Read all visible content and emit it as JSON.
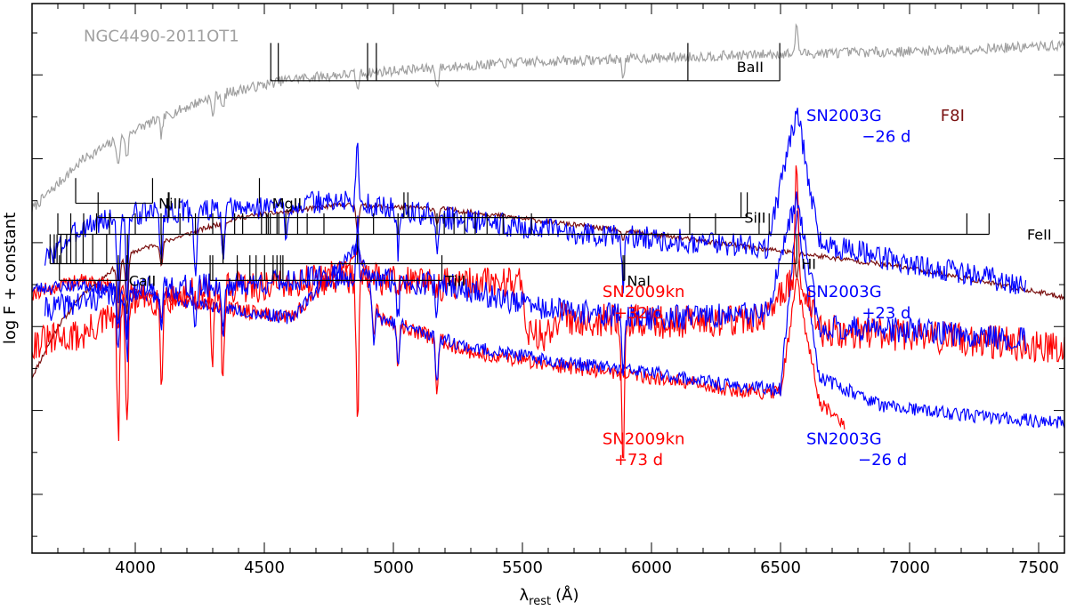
{
  "chart_data": {
    "type": "line",
    "xlabel_main": "λ",
    "xlabel_sub": "rest",
    "xlabel_unit": "(Å)",
    "ylabel": "log F + constant",
    "xlim": [
      3600,
      7600
    ],
    "x_ticks": [
      4000,
      4500,
      5000,
      5500,
      6000,
      6500,
      7000,
      7500
    ],
    "x_tick_labels": [
      "4000",
      "4500",
      "5000",
      "5500",
      "6000",
      "6500",
      "7000",
      "7500"
    ],
    "colors": {
      "blue": "#0000ff",
      "red": "#ff0000",
      "gray": "#a0a0a0",
      "maroon": "#7a1010"
    },
    "series": [
      {
        "id": "ngc4490",
        "name": "NGC4490-2011OT1",
        "color": "#a0a0a0",
        "base": [
          [
            3600,
            1.4
          ],
          [
            3700,
            1.7
          ],
          [
            3800,
            2.0
          ],
          [
            4000,
            2.35
          ],
          [
            4300,
            2.75
          ],
          [
            4600,
            2.95
          ],
          [
            5000,
            3.05
          ],
          [
            5500,
            3.15
          ],
          [
            6000,
            3.2
          ],
          [
            6500,
            3.25
          ],
          [
            7000,
            3.28
          ],
          [
            7600,
            3.35
          ]
        ],
        "lines": [
          [
            3934,
            0.35
          ],
          [
            3968,
            0.3
          ],
          [
            4101,
            0.2
          ],
          [
            4300,
            0.25
          ],
          [
            4340,
            0.2
          ],
          [
            4861,
            0.2
          ],
          [
            5170,
            0.25
          ],
          [
            5890,
            0.2
          ],
          [
            6563,
            -0.35
          ]
        ],
        "noise": 0.06,
        "seed": 7
      },
      {
        "id": "f8i",
        "name": "F8I",
        "color": "#7a1010",
        "base": [
          [
            3600,
            -0.6
          ],
          [
            3700,
            0.0
          ],
          [
            3800,
            0.4
          ],
          [
            4000,
            0.9
          ],
          [
            4400,
            1.3
          ],
          [
            4800,
            1.45
          ],
          [
            5200,
            1.4
          ],
          [
            5600,
            1.25
          ],
          [
            6000,
            1.1
          ],
          [
            6500,
            0.9
          ],
          [
            7000,
            0.7
          ],
          [
            7600,
            0.35
          ]
        ],
        "lines": [
          [
            3934,
            0.7
          ],
          [
            3968,
            0.65
          ],
          [
            4101,
            0.3
          ],
          [
            4340,
            0.35
          ],
          [
            4861,
            0.3
          ],
          [
            5170,
            0.2
          ],
          [
            5890,
            0.15
          ],
          [
            6563,
            0.3
          ]
        ],
        "noise": 0.03,
        "seed": 11
      },
      {
        "id": "sn2003g_m26_top",
        "name": "SN2003G −26 d",
        "color": "#0000ff",
        "base": [
          [
            3650,
            0.8
          ],
          [
            3800,
            1.2
          ],
          [
            4000,
            1.35
          ],
          [
            4400,
            1.4
          ],
          [
            4800,
            1.5
          ],
          [
            5200,
            1.3
          ],
          [
            5600,
            1.15
          ],
          [
            6000,
            1.05
          ],
          [
            6450,
            0.95
          ],
          [
            6563,
            2.6
          ],
          [
            6650,
            1.0
          ],
          [
            7000,
            0.75
          ],
          [
            7450,
            0.5
          ]
        ],
        "lines": [
          [
            3934,
            1.0
          ],
          [
            3968,
            1.0
          ],
          [
            4101,
            0.6
          ],
          [
            4233,
            0.8
          ],
          [
            4340,
            0.7
          ],
          [
            4584,
            0.5
          ],
          [
            4861,
            -0.7
          ],
          [
            5018,
            0.5
          ],
          [
            5169,
            0.5
          ],
          [
            5890,
            0.6
          ]
        ],
        "noise": 0.14,
        "seed": 3
      },
      {
        "id": "sn2009kn_32",
        "name": "SN2009kn +32 d",
        "color": "#ff0000",
        "base": [
          [
            3600,
            0.4
          ],
          [
            3800,
            0.55
          ],
          [
            4200,
            0.3
          ],
          [
            4600,
            0.1
          ],
          [
            4861,
            0.9
          ],
          [
            4950,
            0.1
          ],
          [
            5300,
            -0.3
          ],
          [
            5600,
            -0.45
          ],
          [
            6000,
            -0.6
          ],
          [
            6300,
            -0.75
          ],
          [
            6500,
            -0.8
          ],
          [
            6563,
            0.55
          ],
          [
            6650,
            -0.9
          ],
          [
            6750,
            -1.2
          ]
        ],
        "lines": [
          [
            3934,
            0.5
          ],
          [
            3968,
            0.5
          ],
          [
            4101,
            0.3
          ],
          [
            4340,
            0.3
          ],
          [
            4924,
            0.5
          ],
          [
            5018,
            0.5
          ],
          [
            5169,
            0.6
          ]
        ],
        "noise": 0.09,
        "seed": 19
      },
      {
        "id": "sn2003g_23",
        "name": "SN2003G +23 d",
        "color": "#0000ff",
        "base": [
          [
            3600,
            0.45
          ],
          [
            3800,
            0.5
          ],
          [
            4200,
            0.3
          ],
          [
            4600,
            0.1
          ],
          [
            4861,
            0.95
          ],
          [
            4950,
            0.1
          ],
          [
            5300,
            -0.25
          ],
          [
            5600,
            -0.4
          ],
          [
            6000,
            -0.55
          ],
          [
            6300,
            -0.7
          ],
          [
            6500,
            -0.75
          ],
          [
            6563,
            1.35
          ],
          [
            6650,
            -0.6
          ],
          [
            6900,
            -0.95
          ],
          [
            7200,
            -1.05
          ],
          [
            7600,
            -1.15
          ]
        ],
        "lines": [
          [
            3934,
            0.5
          ],
          [
            3968,
            0.5
          ],
          [
            4101,
            0.3
          ],
          [
            4340,
            0.3
          ],
          [
            4924,
            0.5
          ],
          [
            5018,
            0.5
          ],
          [
            5169,
            0.6
          ]
        ],
        "noise": 0.08,
        "seed": 23
      },
      {
        "id": "sn2009kn_73",
        "name": "SN2009kn +73 d",
        "color": "#ff0000",
        "base": [
          [
            3600,
            -0.2
          ],
          [
            3800,
            -0.1
          ],
          [
            4000,
            0.3
          ],
          [
            4400,
            0.45
          ],
          [
            4800,
            0.6
          ],
          [
            5200,
            0.5
          ],
          [
            5500,
            0.55
          ],
          [
            5520,
            -0.1
          ],
          [
            5620,
            -0.1
          ],
          [
            5640,
            0.1
          ],
          [
            6000,
            0.05
          ],
          [
            6450,
            0.1
          ],
          [
            6563,
            0.7
          ],
          [
            6650,
            -0.05
          ],
          [
            7000,
            -0.1
          ],
          [
            7600,
            -0.25
          ]
        ],
        "lines": [
          [
            3934,
            1.5
          ],
          [
            3968,
            1.4
          ],
          [
            4101,
            1.0
          ],
          [
            4300,
            0.8
          ],
          [
            4340,
            1.2
          ],
          [
            4861,
            1.8
          ],
          [
            5890,
            1.6
          ],
          [
            6563,
            -1.3
          ]
        ],
        "noise": 0.2,
        "seed": 31
      },
      {
        "id": "sn2003g_m26_bottom",
        "name": "SN2003G −26 d",
        "color": "#0000ff",
        "base": [
          [
            3650,
            0.2
          ],
          [
            3800,
            0.3
          ],
          [
            4000,
            0.45
          ],
          [
            4400,
            0.5
          ],
          [
            4800,
            0.6
          ],
          [
            5200,
            0.5
          ],
          [
            5600,
            0.2
          ],
          [
            6000,
            0.1
          ],
          [
            6450,
            0.15
          ],
          [
            6563,
            1.55
          ],
          [
            6650,
            0.0
          ],
          [
            7000,
            -0.05
          ],
          [
            7450,
            -0.15
          ]
        ],
        "lines": [
          [
            3934,
            0.8
          ],
          [
            3968,
            0.8
          ],
          [
            4101,
            0.5
          ],
          [
            4233,
            0.6
          ],
          [
            4340,
            0.6
          ],
          [
            4861,
            -0.6
          ],
          [
            5018,
            0.4
          ],
          [
            5169,
            0.4
          ],
          [
            5890,
            0.6
          ]
        ],
        "noise": 0.15,
        "seed": 41
      }
    ],
    "annotations": [
      {
        "id": "ngc4490",
        "text": "NGC4490-2011OT1",
        "color": "#a0a0a0",
        "x": 3800,
        "y": 3.4
      },
      {
        "id": "sn2003g_top",
        "text": "SN2003G",
        "color": "#0000ff",
        "x": 6600,
        "y": 2.45
      },
      {
        "id": "sn2003g_top_epoch",
        "text": "−26 d",
        "color": "#0000ff",
        "x": 6815,
        "y": 2.2
      },
      {
        "id": "f8i",
        "text": "F8I",
        "color": "#7a1010",
        "x": 7120,
        "y": 2.45
      },
      {
        "id": "sn2009kn_32_name",
        "text": "SN2009kn",
        "color": "#ff0000",
        "x": 5810,
        "y": 0.35
      },
      {
        "id": "sn2009kn_32_epoch",
        "text": "+32 d",
        "color": "#ff0000",
        "x": 5855,
        "y": 0.1
      },
      {
        "id": "sn2003g_23_name",
        "text": "SN2003G",
        "color": "#0000ff",
        "x": 6600,
        "y": 0.35
      },
      {
        "id": "sn2003g_23_epoch",
        "text": "+23 d",
        "color": "#0000ff",
        "x": 6815,
        "y": 0.1
      },
      {
        "id": "sn2009kn_73_name",
        "text": "SN2009kn",
        "color": "#ff0000",
        "x": 5810,
        "y": -1.4
      },
      {
        "id": "sn2009kn_73_epoch",
        "text": "+73 d",
        "color": "#ff0000",
        "x": 5855,
        "y": -1.65
      },
      {
        "id": "sn2003g_m26_name",
        "text": "SN2003G",
        "color": "#0000ff",
        "x": 6600,
        "y": -1.4
      },
      {
        "id": "sn2003g_m26_epoch",
        "text": "−26 d",
        "color": "#0000ff",
        "x": 6800,
        "y": -1.65
      }
    ],
    "line_ids": [
      {
        "label": "BaII",
        "bar_y": 2.93,
        "label_x": 6330,
        "label_pos": "above",
        "wavelengths": [
          4525,
          4554,
          4900,
          4934,
          6141,
          6497
        ],
        "tick": 0.45
      },
      {
        "label": "NiII",
        "bar_y": 1.47,
        "label_x": 4090,
        "label_pos": "right",
        "wavelengths": [
          3769,
          4067
        ],
        "tick": 0.3
      },
      {
        "label": "MgII",
        "bar_y": 1.47,
        "label_x": 4530,
        "label_pos": "right",
        "wavelengths": [
          4481
        ],
        "tick": 0.3
      },
      {
        "label": "SiII",
        "bar_y": 1.3,
        "label_x": 6360,
        "label_pos": "right",
        "wavelengths": [
          3856,
          4128,
          4131,
          5041,
          5056,
          6347,
          6371
        ],
        "tick": 0.3
      },
      {
        "label": "FeII",
        "bar_y": 1.1,
        "label_x": 7455,
        "label_pos": "right",
        "wavelengths": [
          3700,
          3750,
          3800,
          3850,
          3900,
          4000,
          4100,
          4173,
          4233,
          4300,
          4385,
          4416,
          4489,
          4508,
          4515,
          4523,
          4549,
          4556,
          4583,
          4629,
          4666,
          4731,
          4923,
          5018,
          5169,
          5197,
          5235,
          5276,
          5317,
          5363,
          5425,
          5535,
          6148,
          6248,
          6417,
          6456,
          7222,
          7308
        ],
        "tick": 0.25
      },
      {
        "label": "HI",
        "bar_y": 0.75,
        "label_x": 6580,
        "label_pos": "right",
        "wavelengths": [
          3670,
          3686,
          3697,
          3712,
          3734,
          3750,
          3770,
          3798,
          3835,
          3889,
          3970,
          4101,
          4340,
          4861,
          6563
        ],
        "tick": 0.35
      },
      {
        "label": "CaII",
        "bar_y": 0.55,
        "label_x": 3975,
        "label_pos": "right",
        "wavelengths": [
          3706,
          3934,
          3968
        ],
        "tick": 0.3
      },
      {
        "label": "TiII",
        "bar_y": 0.55,
        "label_x": 5200,
        "label_pos": "right",
        "wavelengths": [
          4290,
          4300,
          4395,
          4444,
          4468,
          4501,
          4534,
          4549,
          4563,
          4572,
          5188
        ],
        "tick": 0.3
      },
      {
        "label": "NaI",
        "bar_y": 0.55,
        "label_x": 5905,
        "label_pos": "right",
        "wavelengths": [
          5890,
          5896
        ],
        "tick": 0.3
      }
    ]
  }
}
